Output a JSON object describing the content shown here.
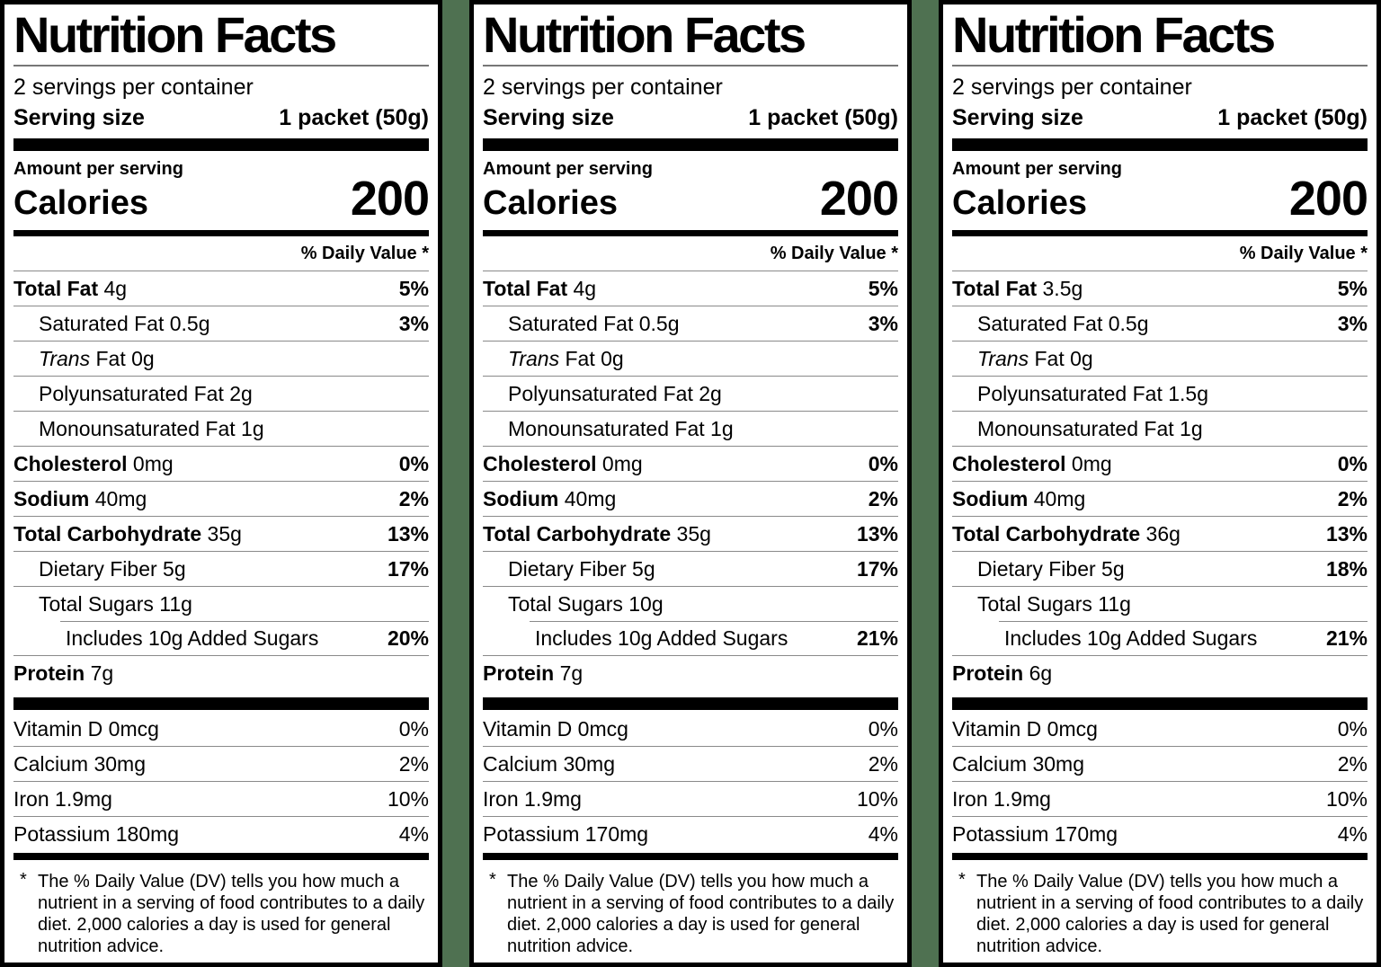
{
  "page": {
    "background_color": "#4f7151",
    "label_background": "#ffffff",
    "label_border_color": "#000000"
  },
  "labels": [
    {
      "title": "Nutrition Facts",
      "servings_per_container": "2 servings per container",
      "serving_size_label": "Serving size",
      "serving_size_value": "1 packet (50g)",
      "amount_per_serving": "Amount per serving",
      "calories_label": "Calories",
      "calories_value": "200",
      "daily_value_header": "% Daily Value *",
      "nutrients": [
        {
          "name": "Total Fat",
          "amount": "4g",
          "dv": "5%",
          "bold": true,
          "indent": 0
        },
        {
          "name": "Saturated Fat",
          "amount": "0.5g",
          "dv": "3%",
          "bold": false,
          "indent": 1
        },
        {
          "name_italic": "Trans",
          "name_rest": " Fat",
          "amount": "0g",
          "dv": "",
          "bold": false,
          "indent": 1
        },
        {
          "name": "Polyunsaturated Fat",
          "amount": "2g",
          "dv": "",
          "bold": false,
          "indent": 1
        },
        {
          "name": "Monounsaturated Fat",
          "amount": "1g",
          "dv": "",
          "bold": false,
          "indent": 1
        },
        {
          "name": "Cholesterol",
          "amount": "0mg",
          "dv": "0%",
          "bold": true,
          "indent": 0
        },
        {
          "name": "Sodium",
          "amount": "40mg",
          "dv": "2%",
          "bold": true,
          "indent": 0
        },
        {
          "name": "Total Carbohydrate",
          "amount": "35g",
          "dv": "13%",
          "bold": true,
          "indent": 0
        },
        {
          "name": "Dietary Fiber",
          "amount": "5g",
          "dv": "17%",
          "bold": false,
          "indent": 1
        },
        {
          "name": "Total Sugars",
          "amount": "11g",
          "dv": "",
          "bold": false,
          "indent": 1
        },
        {
          "name": "Includes 10g Added Sugars",
          "amount": "",
          "dv": "20%",
          "bold": false,
          "indent": 2,
          "sep": "indent"
        },
        {
          "name": "Protein",
          "amount": "7g",
          "dv": "",
          "bold": true,
          "indent": 0
        }
      ],
      "micronutrients": [
        {
          "name": "Vitamin D",
          "amount": "0mcg",
          "dv": "0%"
        },
        {
          "name": "Calcium",
          "amount": "30mg",
          "dv": "2%"
        },
        {
          "name": "Iron",
          "amount": "1.9mg",
          "dv": "10%"
        },
        {
          "name": "Potassium",
          "amount": "180mg",
          "dv": "4%"
        }
      ],
      "footnote_marker": "*",
      "footnote": "The % Daily Value (DV) tells you how much a nutrient in a serving of food contributes to a daily diet. 2,000 calories a day is used for general nutrition advice."
    },
    {
      "title": "Nutrition Facts",
      "servings_per_container": "2 servings per container",
      "serving_size_label": "Serving size",
      "serving_size_value": "1 packet (50g)",
      "amount_per_serving": "Amount per serving",
      "calories_label": "Calories",
      "calories_value": "200",
      "daily_value_header": "% Daily Value *",
      "nutrients": [
        {
          "name": "Total Fat",
          "amount": "4g",
          "dv": "5%",
          "bold": true,
          "indent": 0
        },
        {
          "name": "Saturated Fat",
          "amount": "0.5g",
          "dv": "3%",
          "bold": false,
          "indent": 1
        },
        {
          "name_italic": "Trans",
          "name_rest": " Fat",
          "amount": "0g",
          "dv": "",
          "bold": false,
          "indent": 1
        },
        {
          "name": "Polyunsaturated Fat",
          "amount": "2g",
          "dv": "",
          "bold": false,
          "indent": 1
        },
        {
          "name": "Monounsaturated Fat",
          "amount": "1g",
          "dv": "",
          "bold": false,
          "indent": 1
        },
        {
          "name": "Cholesterol",
          "amount": "0mg",
          "dv": "0%",
          "bold": true,
          "indent": 0
        },
        {
          "name": "Sodium",
          "amount": "40mg",
          "dv": "2%",
          "bold": true,
          "indent": 0
        },
        {
          "name": "Total Carbohydrate",
          "amount": "35g",
          "dv": "13%",
          "bold": true,
          "indent": 0
        },
        {
          "name": "Dietary Fiber",
          "amount": "5g",
          "dv": "17%",
          "bold": false,
          "indent": 1
        },
        {
          "name": "Total Sugars",
          "amount": "10g",
          "dv": "",
          "bold": false,
          "indent": 1
        },
        {
          "name": "Includes 10g Added Sugars",
          "amount": "",
          "dv": "21%",
          "bold": false,
          "indent": 2,
          "sep": "indent"
        },
        {
          "name": "Protein",
          "amount": "7g",
          "dv": "",
          "bold": true,
          "indent": 0
        }
      ],
      "micronutrients": [
        {
          "name": "Vitamin D",
          "amount": "0mcg",
          "dv": "0%"
        },
        {
          "name": "Calcium",
          "amount": "30mg",
          "dv": "2%"
        },
        {
          "name": "Iron",
          "amount": "1.9mg",
          "dv": "10%"
        },
        {
          "name": "Potassium",
          "amount": "170mg",
          "dv": "4%"
        }
      ],
      "footnote_marker": "*",
      "footnote": "The % Daily Value (DV) tells you how much a nutrient in a serving of food contributes to a daily diet. 2,000 calories a day is used for general nutrition advice."
    },
    {
      "title": "Nutrition Facts",
      "servings_per_container": "2 servings per container",
      "serving_size_label": "Serving size",
      "serving_size_value": "1 packet (50g)",
      "amount_per_serving": "Amount per serving",
      "calories_label": "Calories",
      "calories_value": "200",
      "daily_value_header": "% Daily Value *",
      "nutrients": [
        {
          "name": "Total Fat",
          "amount": "3.5g",
          "dv": "5%",
          "bold": true,
          "indent": 0
        },
        {
          "name": "Saturated Fat",
          "amount": "0.5g",
          "dv": "3%",
          "bold": false,
          "indent": 1
        },
        {
          "name_italic": "Trans",
          "name_rest": " Fat",
          "amount": "0g",
          "dv": "",
          "bold": false,
          "indent": 1
        },
        {
          "name": "Polyunsaturated Fat",
          "amount": "1.5g",
          "dv": "",
          "bold": false,
          "indent": 1
        },
        {
          "name": "Monounsaturated Fat",
          "amount": "1g",
          "dv": "",
          "bold": false,
          "indent": 1
        },
        {
          "name": "Cholesterol",
          "amount": "0mg",
          "dv": "0%",
          "bold": true,
          "indent": 0
        },
        {
          "name": "Sodium",
          "amount": "40mg",
          "dv": "2%",
          "bold": true,
          "indent": 0
        },
        {
          "name": "Total Carbohydrate",
          "amount": "36g",
          "dv": "13%",
          "bold": true,
          "indent": 0
        },
        {
          "name": "Dietary Fiber",
          "amount": "5g",
          "dv": "18%",
          "bold": false,
          "indent": 1
        },
        {
          "name": "Total Sugars",
          "amount": "11g",
          "dv": "",
          "bold": false,
          "indent": 1
        },
        {
          "name": "Includes 10g Added Sugars",
          "amount": "",
          "dv": "21%",
          "bold": false,
          "indent": 2,
          "sep": "indent"
        },
        {
          "name": "Protein",
          "amount": "6g",
          "dv": "",
          "bold": true,
          "indent": 0
        }
      ],
      "micronutrients": [
        {
          "name": "Vitamin D",
          "amount": "0mcg",
          "dv": "0%"
        },
        {
          "name": "Calcium",
          "amount": "30mg",
          "dv": "2%"
        },
        {
          "name": "Iron",
          "amount": "1.9mg",
          "dv": "10%"
        },
        {
          "name": "Potassium",
          "amount": "170mg",
          "dv": "4%"
        }
      ],
      "footnote_marker": "*",
      "footnote": "The % Daily Value (DV) tells you how much a nutrient in a serving of food contributes to a daily diet. 2,000 calories a day is used for general nutrition advice."
    }
  ]
}
